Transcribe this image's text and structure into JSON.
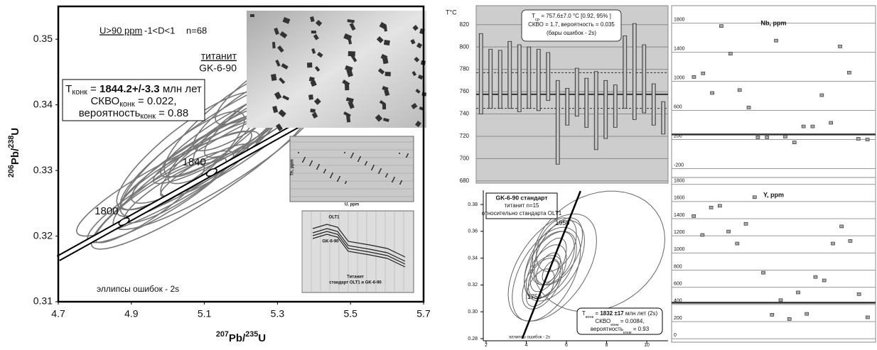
{
  "chart_data": [
    {
      "type": "concordia",
      "title": "U>90 ppm",
      "title2": "-1<D<1",
      "n_label": "n=68",
      "mineral": "титанит",
      "sample": "GK-6-90",
      "annotation": [
        [
          {
            "text": "T"
          },
          {
            "text": "конк",
            "sub": true
          },
          {
            "text": " = "
          },
          {
            "text": "1844.2+/-3.3",
            "bold": true
          },
          {
            "text": " млн лет"
          }
        ],
        [
          {
            "text": "СКВО"
          },
          {
            "text": "конк",
            "sub": true
          },
          {
            "text": " = 0.022,"
          }
        ],
        [
          {
            "text": "вероятность"
          },
          {
            "text": "конк",
            "sub": true
          },
          {
            "text": " = 0.88"
          }
        ]
      ],
      "xlabel": [
        {
          "text": "207",
          "sup": true
        },
        {
          "text": "Pb/"
        },
        {
          "text": "235",
          "sup": true
        },
        {
          "text": "U"
        }
      ],
      "ylabel": [
        {
          "text": "206",
          "sup": true
        },
        {
          "text": "Pb/"
        },
        {
          "text": "238",
          "sup": true
        },
        {
          "text": "U"
        }
      ],
      "xlim": [
        4.7,
        5.7
      ],
      "xticks": [
        4.7,
        4.9,
        5.1,
        5.3,
        5.5,
        5.7
      ],
      "ylim": [
        0.31,
        0.355
      ],
      "yticks": [
        0.31,
        0.32,
        0.33,
        0.34,
        0.35
      ],
      "concordia": {
        "x": [
          4.7,
          5.7
        ],
        "y": [
          0.3166,
          0.3476
        ]
      },
      "age_markers": [
        {
          "age": 1800,
          "x": 4.88,
          "y": 0.3222
        },
        {
          "age": 1840,
          "x": 5.12,
          "y": 0.3297
        }
      ],
      "ellipses": [
        {
          "x": 5.05,
          "y": 0.33,
          "dx": 0.18,
          "dy": 0.006,
          "rho": 0.9
        },
        {
          "x": 5.1,
          "y": 0.332,
          "dx": 0.2,
          "dy": 0.007,
          "rho": 0.88
        },
        {
          "x": 5.12,
          "y": 0.333,
          "dx": 0.16,
          "dy": 0.005,
          "rho": 0.9
        },
        {
          "x": 5.08,
          "y": 0.331,
          "dx": 0.22,
          "dy": 0.008,
          "rho": 0.9
        },
        {
          "x": 5.15,
          "y": 0.334,
          "dx": 0.15,
          "dy": 0.006,
          "rho": 0.85
        },
        {
          "x": 5.0,
          "y": 0.328,
          "dx": 0.25,
          "dy": 0.008,
          "rho": 0.9
        },
        {
          "x": 5.18,
          "y": 0.336,
          "dx": 0.2,
          "dy": 0.007,
          "rho": 0.9
        },
        {
          "x": 5.02,
          "y": 0.327,
          "dx": 0.14,
          "dy": 0.005,
          "rho": 0.88
        },
        {
          "x": 5.2,
          "y": 0.335,
          "dx": 0.22,
          "dy": 0.009,
          "rho": 0.9
        },
        {
          "x": 5.1,
          "y": 0.33,
          "dx": 0.12,
          "dy": 0.004,
          "rho": 0.9
        },
        {
          "x": 5.25,
          "y": 0.338,
          "dx": 0.18,
          "dy": 0.007,
          "rho": 0.88
        },
        {
          "x": 4.98,
          "y": 0.326,
          "dx": 0.2,
          "dy": 0.007,
          "rho": 0.9
        },
        {
          "x": 5.13,
          "y": 0.331,
          "dx": 0.28,
          "dy": 0.01,
          "rho": 0.9
        },
        {
          "x": 5.22,
          "y": 0.339,
          "dx": 0.15,
          "dy": 0.006,
          "rho": 0.85
        },
        {
          "x": 5.06,
          "y": 0.333,
          "dx": 0.2,
          "dy": 0.009,
          "rho": 0.85
        },
        {
          "x": 5.3,
          "y": 0.34,
          "dx": 0.2,
          "dy": 0.008,
          "rho": 0.9
        },
        {
          "x": 5.09,
          "y": 0.329,
          "dx": 0.3,
          "dy": 0.011,
          "rho": 0.92
        },
        {
          "x": 5.16,
          "y": 0.337,
          "dx": 0.17,
          "dy": 0.008,
          "rho": 0.85
        },
        {
          "x": 4.95,
          "y": 0.325,
          "dx": 0.15,
          "dy": 0.006,
          "rho": 0.9
        },
        {
          "x": 5.28,
          "y": 0.343,
          "dx": 0.15,
          "dy": 0.006,
          "rho": 0.85
        },
        {
          "x": 5.12,
          "y": 0.334,
          "dx": 0.25,
          "dy": 0.01,
          "rho": 0.9
        },
        {
          "x": 5.04,
          "y": 0.331,
          "dx": 0.17,
          "dy": 0.008,
          "rho": 0.85
        }
      ],
      "error_note": "эллипсы ошибок - 2s",
      "inset_texts": [
        "Th, ppm",
        "U, ppm",
        "OLT1",
        "GK-6-90",
        "Титанит",
        "стандарт OLT1 и GK-6-90"
      ]
    },
    {
      "type": "range_bar",
      "ylabel": "T°C",
      "annotation": [
        [
          {
            "text": "T"
          },
          {
            "text": "ср",
            "sub": true
          },
          {
            "text": " = 757.6±7.0 °C  [0.92, 95% ]"
          }
        ],
        [
          {
            "text": "СКВО = 1.7, вероятность = 0.035"
          }
        ],
        [
          {
            "text": "(бары ошибок - 2s)"
          }
        ]
      ],
      "ylim": [
        678,
        837
      ],
      "yticks": [
        680,
        700,
        720,
        740,
        760,
        780,
        800,
        820
      ],
      "low": [
        740,
        745,
        745,
        745,
        742,
        745,
        743,
        752,
        695,
        730,
        738,
        728,
        708,
        718,
        728,
        745,
        735,
        741,
        730,
        722
      ],
      "high": [
        812,
        798,
        797,
        805,
        802,
        800,
        798,
        795,
        770,
        763,
        781,
        772,
        778,
        770,
        766,
        810,
        821,
        802,
        767,
        751
      ],
      "reference_lines": [
        757.6
      ],
      "dashed_lines": [
        777,
        745
      ],
      "grid": true
    },
    {
      "type": "dot",
      "title": "Nb, ppm",
      "ylim": [
        -400,
        2040
      ],
      "yticks": [
        -200,
        200,
        600,
        1000,
        1400,
        1800
      ],
      "values": [
        1060,
        1110,
        840,
        1760,
        1380,
        880,
        640,
        230,
        230,
        1560,
        240,
        160,
        380,
        380,
        810,
        430,
        1480,
        1120,
        210,
        200
      ],
      "reference_lines": [
        270
      ],
      "grid": true
    },
    {
      "type": "concordia",
      "title_lines": [
        "GK-6-90 стандарт",
        "титанит n=15",
        "относительно стандарта OLT1"
      ],
      "annotation": [
        [
          {
            "text": "T"
          },
          {
            "text": "конк",
            "sub": true
          },
          {
            "text": " = "
          },
          {
            "text": "1832 ±17",
            "bold": true
          },
          {
            "text": " млн лет (2s)"
          }
        ],
        [
          {
            "text": "СКВО"
          },
          {
            "text": "конк",
            "sub": true
          },
          {
            "text": " = 0.0084,"
          }
        ],
        [
          {
            "text": "вероятность"
          },
          {
            "text": "конк",
            "sub": true
          },
          {
            "text": " = 0.93"
          }
        ]
      ],
      "xlim": [
        1.86,
        11.06
      ],
      "xticks": [
        2,
        4,
        6,
        8,
        10
      ],
      "ylim": [
        0.2784,
        0.3906
      ],
      "yticks": [
        0.28,
        {
          "value": 0.3,
          "label": "0.30"
        },
        0.32,
        0.34,
        0.36,
        0.38
      ],
      "concordia": {
        "x": [
          3.8,
          6.7
        ],
        "y": [
          0.28,
          0.39
        ]
      },
      "age_labels": [
        {
          "age": 1950,
          "x": 5.8,
          "y": 0.366
        },
        {
          "age": 1750,
          "x": 4.4,
          "y": 0.311
        }
      ],
      "ellipses": [
        {
          "x": 5.0,
          "y": 0.33,
          "dx": 1.0,
          "dy": 0.02,
          "rho": 0.5
        },
        {
          "x": 5.2,
          "y": 0.335,
          "dx": 1.3,
          "dy": 0.025,
          "rho": 0.5
        },
        {
          "x": 4.9,
          "y": 0.325,
          "dx": 0.8,
          "dy": 0.015,
          "rho": 0.4
        },
        {
          "x": 5.4,
          "y": 0.338,
          "dx": 1.5,
          "dy": 0.03,
          "rho": 0.5
        },
        {
          "x": 5.1,
          "y": 0.332,
          "dx": 0.6,
          "dy": 0.012,
          "rho": 0.5
        },
        {
          "x": 4.8,
          "y": 0.322,
          "dx": 1.0,
          "dy": 0.02,
          "rho": 0.5
        },
        {
          "x": 5.3,
          "y": 0.34,
          "dx": 1.1,
          "dy": 0.02,
          "rho": 0.4
        },
        {
          "x": 5.0,
          "y": 0.328,
          "dx": 1.7,
          "dy": 0.035,
          "rho": 0.5
        },
        {
          "x": 5.6,
          "y": 0.345,
          "dx": 1.2,
          "dy": 0.025,
          "rho": 0.5
        },
        {
          "x": 7.6,
          "y": 0.345,
          "dx": 3.3,
          "dy": 0.045,
          "rho": 0.2
        },
        {
          "x": 5.2,
          "y": 0.33,
          "dx": 0.4,
          "dy": 0.008,
          "rho": 0.5
        },
        {
          "x": 5.5,
          "y": 0.35,
          "dx": 1.0,
          "dy": 0.02,
          "rho": 0.4
        },
        {
          "x": 4.7,
          "y": 0.318,
          "dx": 0.7,
          "dy": 0.014,
          "rho": 0.5
        },
        {
          "x": 5.3,
          "y": 0.333,
          "dx": 2.2,
          "dy": 0.04,
          "rho": 0.5
        },
        {
          "x": 5.1,
          "y": 0.335,
          "dx": 0.9,
          "dy": 0.02,
          "rho": 0.6
        }
      ],
      "error_note": "эллипсы ошибок - 2s"
    },
    {
      "type": "dot",
      "title": "Y, ppm",
      "ylim": [
        -40,
        1880
      ],
      "yticks": [
        0,
        200,
        400,
        600,
        800,
        1000,
        1200,
        1400,
        1600,
        1800
      ],
      "values": [
        1430,
        1210,
        1530,
        1550,
        1250,
        1110,
        1340,
        1650,
        770,
        280,
        450,
        230,
        540,
        290,
        720,
        680,
        1110,
        1310,
        1140,
        520,
        250
      ],
      "reference_lines": [
        420
      ],
      "grid": true
    }
  ]
}
